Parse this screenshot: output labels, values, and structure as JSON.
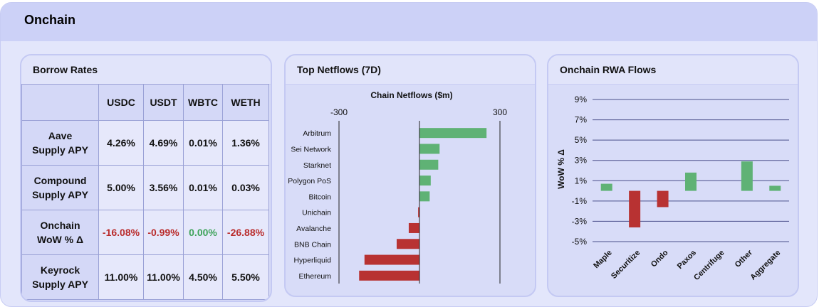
{
  "page": {
    "title": "Onchain"
  },
  "borrow": {
    "title": "Borrow Rates",
    "columns": [
      "USDC",
      "USDT",
      "WBTC",
      "WETH"
    ],
    "rows": [
      {
        "label_line1": "Aave",
        "label_line2": "Supply APY",
        "values": [
          "4.26%",
          "4.69%",
          "0.01%",
          "1.36%"
        ]
      },
      {
        "label_line1": "Compound",
        "label_line2": "Supply APY",
        "values": [
          "5.00%",
          "3.56%",
          "0.01%",
          "0.03%"
        ]
      },
      {
        "label_line1": "Onchain",
        "label_line2": "WoW % Δ",
        "values": [
          "-16.08%",
          "-0.99%",
          "0.00%",
          "-26.88%"
        ]
      },
      {
        "label_line1": "Keyrock",
        "label_line2": "Supply APY",
        "values": [
          "11.00%",
          "11.00%",
          "4.50%",
          "5.50%"
        ]
      }
    ]
  },
  "netflows": {
    "title": "Top Netflows (7D)"
  },
  "rwa": {
    "title": "Onchain RWA Flows"
  },
  "colors": {
    "positive": "#5fb275",
    "negative": "#b83232",
    "red_text": "#b92b2b",
    "green_text": "#3ea35a"
  },
  "chart_data": [
    {
      "type": "bar",
      "orientation": "horizontal",
      "title": "Chain Netflows ($m)",
      "categories": [
        "Arbitrum",
        "Sei Network",
        "Starknet",
        "Polygon PoS",
        "Bitcoin",
        "Unichain",
        "Avalanche",
        "BNB Chain",
        "Hyperliquid",
        "Ethereum"
      ],
      "values": [
        250,
        75,
        70,
        42,
        38,
        -5,
        -40,
        -85,
        -205,
        -225
      ],
      "xlim": [
        -300,
        300
      ],
      "xticks": [
        "-300",
        "300"
      ],
      "grid": false
    },
    {
      "type": "bar",
      "title": "",
      "ylabel": "WoW % Δ",
      "categories": [
        "Maple",
        "Securitize",
        "Ondo",
        "Paxos",
        "Centrifuge",
        "Other",
        "Aggregate"
      ],
      "values": [
        0.7,
        -3.6,
        -1.6,
        1.8,
        0.0,
        2.9,
        0.5
      ],
      "ylim": [
        -5,
        9
      ],
      "yticks": [
        "9%",
        "7%",
        "5%",
        "3%",
        "1%",
        "-1%",
        "-3%",
        "-5%"
      ],
      "grid": true
    }
  ]
}
